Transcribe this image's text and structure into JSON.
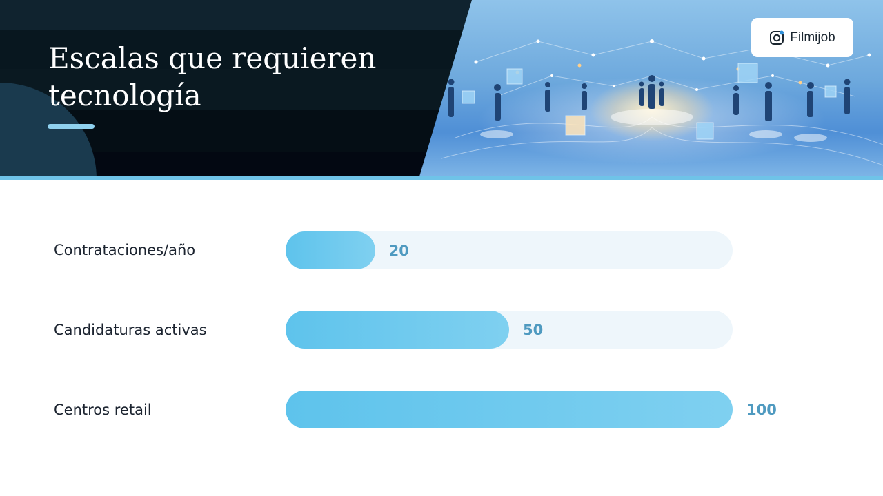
{
  "header": {
    "title": "Escalas que requieren tecnología",
    "brand": {
      "name": "Filmijob",
      "icon": "instagram-icon"
    }
  },
  "chart_data": {
    "type": "bar",
    "orientation": "horizontal",
    "categories": [
      "Contrataciones/año",
      "Candidaturas activas",
      "Centros retail"
    ],
    "values": [
      20,
      50,
      100
    ],
    "value_labels": [
      "20",
      "50",
      "100"
    ],
    "xlim": [
      0,
      100
    ],
    "colors": {
      "bar": "#5ec3ec",
      "track": "#eef6fb",
      "value_text": "#4f9ac0"
    }
  }
}
